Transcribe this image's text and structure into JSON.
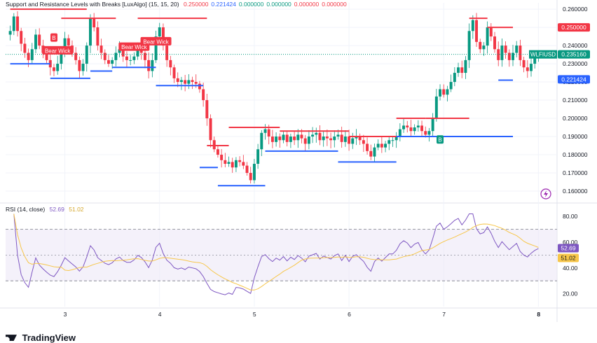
{
  "header": {
    "indicator": "Support and Resistance Levels with Breaks [LuxAlgo] (15, 15, 20)",
    "values": [
      "0.250000",
      "0.221424",
      "0.000000",
      "0.000000",
      "0.000000",
      "0.000000"
    ],
    "colors": [
      "#f23645",
      "#2962ff",
      "#089981",
      "#089981",
      "#f23645",
      "#f23645"
    ]
  },
  "rsi_header": {
    "label": "RSI (14, close)",
    "value": "52.69",
    "ma_value": "51.02"
  },
  "logo": {
    "text": "TradingView"
  },
  "colors": {
    "up": "#089981",
    "down": "#f23645",
    "resistance": "#f23645",
    "support": "#2962ff",
    "rsi": "#7e57c2",
    "rsi_ma": "#f7c64a",
    "last_price": "#089981"
  },
  "chart_data": [
    {
      "type": "candlestick",
      "symbol": "WLFIUSD",
      "last_price": "0.235160",
      "x_ticks": [
        "3",
        "4",
        "5",
        "6",
        "7",
        "8"
      ],
      "y_ticks": [
        "0.260000",
        "0.250000",
        "0.240000",
        "0.230000",
        "0.220000",
        "0.210000",
        "0.200000",
        "0.190000",
        "0.180000",
        "0.170000",
        "0.160000"
      ],
      "ylim": [
        0.155,
        0.2635
      ],
      "price_badges": [
        {
          "text": "0.250000",
          "value": 0.25,
          "color": "#f23645"
        },
        {
          "text": "0.235160",
          "value": 0.23516,
          "color": "#089981"
        },
        {
          "text": "0.221424",
          "value": 0.221424,
          "color": "#2962ff"
        }
      ],
      "closes": [
        0.248,
        0.256,
        0.248,
        0.241,
        0.236,
        0.232,
        0.238,
        0.246,
        0.24,
        0.236,
        0.232,
        0.228,
        0.226,
        0.23,
        0.236,
        0.244,
        0.24,
        0.236,
        0.232,
        0.226,
        0.23,
        0.24,
        0.255,
        0.25,
        0.24,
        0.236,
        0.232,
        0.23,
        0.232,
        0.236,
        0.238,
        0.234,
        0.232,
        0.232,
        0.234,
        0.238,
        0.236,
        0.232,
        0.226,
        0.232,
        0.245,
        0.25,
        0.24,
        0.232,
        0.228,
        0.222,
        0.22,
        0.221,
        0.219,
        0.221,
        0.22,
        0.219,
        0.216,
        0.21,
        0.2,
        0.188,
        0.183,
        0.18,
        0.177,
        0.175,
        0.176,
        0.173,
        0.177,
        0.176,
        0.174,
        0.17,
        0.166,
        0.175,
        0.183,
        0.192,
        0.194,
        0.19,
        0.187,
        0.19,
        0.188,
        0.191,
        0.187,
        0.19,
        0.188,
        0.191,
        0.189,
        0.186,
        0.19,
        0.191,
        0.192,
        0.188,
        0.19,
        0.189,
        0.188,
        0.19,
        0.191,
        0.187,
        0.19,
        0.186,
        0.189,
        0.19,
        0.188,
        0.186,
        0.182,
        0.179,
        0.184,
        0.186,
        0.184,
        0.186,
        0.188,
        0.188,
        0.19,
        0.194,
        0.196,
        0.195,
        0.193,
        0.195,
        0.196,
        0.193,
        0.191,
        0.193,
        0.2,
        0.212,
        0.216,
        0.213,
        0.216,
        0.22,
        0.225,
        0.228,
        0.225,
        0.232,
        0.248,
        0.254,
        0.242,
        0.238,
        0.24,
        0.25,
        0.245,
        0.238,
        0.232,
        0.24,
        0.236,
        0.232,
        0.236,
        0.24,
        0.232,
        0.228,
        0.226,
        0.23,
        0.233,
        0.235
      ],
      "resistance_segments": [
        {
          "x0": 0,
          "x1": 21,
          "y": 0.26
        },
        {
          "x0": 14,
          "x1": 29,
          "y": 0.255
        },
        {
          "x0": 35,
          "x1": 54,
          "y": 0.255
        },
        {
          "x0": 54,
          "x1": 60,
          "y": 0.185
        },
        {
          "x0": 60,
          "x1": 74,
          "y": 0.195
        },
        {
          "x0": 74,
          "x1": 84,
          "y": 0.193
        },
        {
          "x0": 84,
          "x1": 93,
          "y": 0.193
        },
        {
          "x0": 93,
          "x1": 97,
          "y": 0.19
        },
        {
          "x0": 97,
          "x1": 106,
          "y": 0.19
        },
        {
          "x0": 106,
          "x1": 114,
          "y": 0.2
        },
        {
          "x0": 114,
          "x1": 126,
          "y": 0.2
        },
        {
          "x0": 126,
          "x1": 131,
          "y": 0.255
        },
        {
          "x0": 131,
          "x1": 138,
          "y": 0.25
        }
      ],
      "support_segments": [
        {
          "x0": 0,
          "x1": 11,
          "y": 0.23
        },
        {
          "x0": 11,
          "x1": 22,
          "y": 0.222
        },
        {
          "x0": 22,
          "x1": 28,
          "y": 0.226
        },
        {
          "x0": 28,
          "x1": 40,
          "y": 0.228
        },
        {
          "x0": 40,
          "x1": 53,
          "y": 0.218
        },
        {
          "x0": 52,
          "x1": 57,
          "y": 0.173
        },
        {
          "x0": 57,
          "x1": 70,
          "y": 0.163
        },
        {
          "x0": 70,
          "x1": 90,
          "y": 0.182
        },
        {
          "x0": 90,
          "x1": 106,
          "y": 0.176
        },
        {
          "x0": 106,
          "x1": 138,
          "y": 0.19
        },
        {
          "x0": 134,
          "x1": 138,
          "y": 0.221
        }
      ],
      "labels": [
        {
          "text": "B",
          "color": "#f23645",
          "value": 0.244,
          "index": 12
        },
        {
          "text": "Bear Wick",
          "color": "#f23645",
          "value": 0.237,
          "index": 13
        },
        {
          "text": "Bear Wick",
          "color": "#f23645",
          "value": 0.239,
          "index": 34
        },
        {
          "text": "Bear Wick",
          "color": "#f23645",
          "value": 0.242,
          "index": 40
        },
        {
          "text": "B",
          "color": "#089981",
          "value": 0.188,
          "index": 118
        }
      ]
    },
    {
      "type": "line",
      "name": "RSI (14, close)",
      "y_ticks": [
        "80.00",
        "60.00",
        "40.00",
        "20.00"
      ],
      "ylim": [
        10,
        85
      ],
      "band": [
        30,
        70
      ],
      "midline": 50,
      "badges": [
        {
          "text": "52.69",
          "value": 52.69,
          "color": "#7e57c2"
        },
        {
          "text": "51.02",
          "value": 51.02,
          "color": "#f7c64a"
        }
      ]
    }
  ]
}
